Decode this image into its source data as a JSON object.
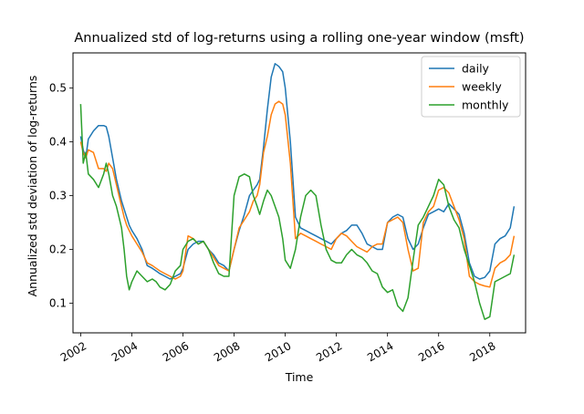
{
  "chart_data": {
    "type": "line",
    "title": "Annualized std of log-returns using a rolling one-year window (msft)",
    "xlabel": "Time",
    "ylabel": "Annualized std deviation of log-returns",
    "xlim": [
      2001.7,
      2019.4
    ],
    "ylim": [
      0.045,
      0.565
    ],
    "x_ticks": [
      2002,
      2004,
      2006,
      2008,
      2010,
      2012,
      2014,
      2016,
      2018
    ],
    "x_tick_labels": [
      "2002",
      "2004",
      "2006",
      "2008",
      "2010",
      "2012",
      "2014",
      "2016",
      "2018"
    ],
    "y_ticks": [
      0.1,
      0.2,
      0.3,
      0.4,
      0.5
    ],
    "y_tick_labels": [
      "0.1",
      "0.2",
      "0.3",
      "0.4",
      "0.5"
    ],
    "grid": false,
    "legend_position": "top-right",
    "series": [
      {
        "name": "daily",
        "color": "#1f77b4",
        "x": [
          2002.0,
          2002.1,
          2002.2,
          2002.3,
          2002.5,
          2002.7,
          2002.9,
          2003.0,
          2003.1,
          2003.25,
          2003.4,
          2003.5,
          2003.6,
          2003.7,
          2003.8,
          2003.9,
          2004.0,
          2004.2,
          2004.4,
          2004.6,
          2004.8,
          2004.95,
          2005.1,
          2005.3,
          2005.5,
          2005.7,
          2005.9,
          2006.0,
          2006.2,
          2006.4,
          2006.6,
          2006.8,
          2007.0,
          2007.2,
          2007.4,
          2007.6,
          2007.8,
          2008.0,
          2008.2,
          2008.4,
          2008.6,
          2008.75,
          2008.9,
          2009.0,
          2009.15,
          2009.3,
          2009.45,
          2009.6,
          2009.75,
          2009.9,
          2010.0,
          2010.2,
          2010.4,
          2010.6,
          2010.8,
          2011.0,
          2011.2,
          2011.4,
          2011.6,
          2011.8,
          2012.0,
          2012.2,
          2012.4,
          2012.6,
          2012.8,
          2013.0,
          2013.2,
          2013.4,
          2013.6,
          2013.8,
          2014.0,
          2014.2,
          2014.4,
          2014.6,
          2014.8,
          2015.0,
          2015.2,
          2015.4,
          2015.6,
          2015.8,
          2016.0,
          2016.2,
          2016.4,
          2016.6,
          2016.8,
          2017.0,
          2017.2,
          2017.4,
          2017.6,
          2017.8,
          2018.0,
          2018.2,
          2018.4,
          2018.6,
          2018.8,
          2018.95
        ],
        "values": [
          0.41,
          0.385,
          0.37,
          0.405,
          0.42,
          0.43,
          0.43,
          0.428,
          0.41,
          0.37,
          0.33,
          0.31,
          0.29,
          0.275,
          0.26,
          0.245,
          0.235,
          0.22,
          0.2,
          0.17,
          0.165,
          0.16,
          0.155,
          0.15,
          0.145,
          0.15,
          0.155,
          0.165,
          0.2,
          0.21,
          0.215,
          0.215,
          0.2,
          0.19,
          0.175,
          0.17,
          0.16,
          0.2,
          0.235,
          0.265,
          0.3,
          0.31,
          0.32,
          0.33,
          0.39,
          0.46,
          0.52,
          0.545,
          0.54,
          0.53,
          0.5,
          0.4,
          0.26,
          0.24,
          0.235,
          0.23,
          0.225,
          0.22,
          0.215,
          0.21,
          0.22,
          0.23,
          0.235,
          0.245,
          0.245,
          0.23,
          0.21,
          0.205,
          0.2,
          0.2,
          0.25,
          0.26,
          0.265,
          0.26,
          0.22,
          0.2,
          0.21,
          0.24,
          0.265,
          0.27,
          0.275,
          0.27,
          0.285,
          0.275,
          0.265,
          0.23,
          0.175,
          0.15,
          0.145,
          0.148,
          0.16,
          0.21,
          0.22,
          0.225,
          0.24,
          0.28
        ]
      },
      {
        "name": "weekly",
        "color": "#ff7f0e",
        "x": [
          2002.0,
          2002.1,
          2002.2,
          2002.3,
          2002.5,
          2002.7,
          2002.9,
          2003.0,
          2003.1,
          2003.25,
          2003.4,
          2003.5,
          2003.6,
          2003.7,
          2003.8,
          2003.9,
          2004.0,
          2004.2,
          2004.4,
          2004.6,
          2004.8,
          2004.95,
          2005.1,
          2005.3,
          2005.5,
          2005.7,
          2005.9,
          2006.0,
          2006.2,
          2006.4,
          2006.6,
          2006.8,
          2007.0,
          2007.2,
          2007.4,
          2007.6,
          2007.8,
          2008.0,
          2008.2,
          2008.4,
          2008.6,
          2008.75,
          2008.9,
          2009.0,
          2009.15,
          2009.3,
          2009.45,
          2009.6,
          2009.75,
          2009.9,
          2010.0,
          2010.2,
          2010.4,
          2010.6,
          2010.8,
          2011.0,
          2011.2,
          2011.4,
          2011.6,
          2011.8,
          2012.0,
          2012.2,
          2012.4,
          2012.6,
          2012.8,
          2013.0,
          2013.2,
          2013.4,
          2013.6,
          2013.8,
          2014.0,
          2014.2,
          2014.4,
          2014.6,
          2014.8,
          2015.0,
          2015.2,
          2015.4,
          2015.6,
          2015.8,
          2016.0,
          2016.2,
          2016.4,
          2016.6,
          2016.8,
          2017.0,
          2017.2,
          2017.4,
          2017.6,
          2017.8,
          2018.0,
          2018.2,
          2018.4,
          2018.6,
          2018.8,
          2018.95
        ],
        "values": [
          0.4,
          0.38,
          0.37,
          0.385,
          0.38,
          0.35,
          0.35,
          0.345,
          0.36,
          0.35,
          0.32,
          0.3,
          0.28,
          0.26,
          0.245,
          0.235,
          0.225,
          0.21,
          0.195,
          0.175,
          0.17,
          0.165,
          0.16,
          0.155,
          0.15,
          0.145,
          0.15,
          0.16,
          0.225,
          0.22,
          0.21,
          0.215,
          0.2,
          0.185,
          0.17,
          0.165,
          0.16,
          0.2,
          0.24,
          0.255,
          0.27,
          0.29,
          0.3,
          0.32,
          0.38,
          0.41,
          0.45,
          0.47,
          0.475,
          0.47,
          0.45,
          0.36,
          0.22,
          0.23,
          0.225,
          0.22,
          0.215,
          0.21,
          0.205,
          0.2,
          0.22,
          0.23,
          0.225,
          0.215,
          0.205,
          0.2,
          0.195,
          0.205,
          0.21,
          0.21,
          0.25,
          0.255,
          0.26,
          0.25,
          0.2,
          0.16,
          0.165,
          0.25,
          0.27,
          0.28,
          0.31,
          0.315,
          0.305,
          0.28,
          0.255,
          0.22,
          0.15,
          0.14,
          0.135,
          0.132,
          0.13,
          0.165,
          0.175,
          0.18,
          0.19,
          0.225
        ]
      },
      {
        "name": "monthly",
        "color": "#2ca02c",
        "x": [
          2002.0,
          2002.1,
          2002.2,
          2002.3,
          2002.5,
          2002.7,
          2002.9,
          2003.0,
          2003.1,
          2003.25,
          2003.4,
          2003.5,
          2003.6,
          2003.7,
          2003.8,
          2003.9,
          2004.0,
          2004.2,
          2004.4,
          2004.6,
          2004.8,
          2004.95,
          2005.1,
          2005.3,
          2005.5,
          2005.7,
          2005.9,
          2006.0,
          2006.2,
          2006.4,
          2006.6,
          2006.8,
          2007.0,
          2007.2,
          2007.4,
          2007.6,
          2007.8,
          2008.0,
          2008.2,
          2008.4,
          2008.6,
          2008.75,
          2008.9,
          2009.0,
          2009.15,
          2009.3,
          2009.45,
          2009.6,
          2009.75,
          2009.9,
          2010.0,
          2010.2,
          2010.4,
          2010.6,
          2010.8,
          2011.0,
          2011.2,
          2011.4,
          2011.6,
          2011.8,
          2012.0,
          2012.2,
          2012.4,
          2012.6,
          2012.8,
          2013.0,
          2013.2,
          2013.4,
          2013.6,
          2013.8,
          2014.0,
          2014.2,
          2014.4,
          2014.6,
          2014.8,
          2015.0,
          2015.2,
          2015.4,
          2015.6,
          2015.8,
          2016.0,
          2016.2,
          2016.4,
          2016.6,
          2016.8,
          2017.0,
          2017.2,
          2017.4,
          2017.6,
          2017.8,
          2018.0,
          2018.2,
          2018.4,
          2018.6,
          2018.8,
          2018.95
        ],
        "values": [
          0.47,
          0.36,
          0.38,
          0.34,
          0.33,
          0.315,
          0.34,
          0.36,
          0.34,
          0.3,
          0.28,
          0.26,
          0.24,
          0.2,
          0.15,
          0.125,
          0.14,
          0.16,
          0.15,
          0.14,
          0.145,
          0.14,
          0.13,
          0.125,
          0.135,
          0.16,
          0.17,
          0.2,
          0.215,
          0.22,
          0.21,
          0.215,
          0.2,
          0.175,
          0.155,
          0.15,
          0.15,
          0.3,
          0.335,
          0.34,
          0.335,
          0.3,
          0.28,
          0.265,
          0.29,
          0.31,
          0.3,
          0.28,
          0.26,
          0.22,
          0.18,
          0.165,
          0.2,
          0.26,
          0.3,
          0.31,
          0.3,
          0.245,
          0.2,
          0.18,
          0.175,
          0.175,
          0.19,
          0.2,
          0.19,
          0.185,
          0.175,
          0.16,
          0.155,
          0.13,
          0.12,
          0.125,
          0.095,
          0.085,
          0.11,
          0.18,
          0.245,
          0.26,
          0.28,
          0.3,
          0.33,
          0.32,
          0.28,
          0.255,
          0.24,
          0.2,
          0.17,
          0.14,
          0.1,
          0.07,
          0.075,
          0.14,
          0.145,
          0.15,
          0.155,
          0.19
        ]
      }
    ]
  }
}
